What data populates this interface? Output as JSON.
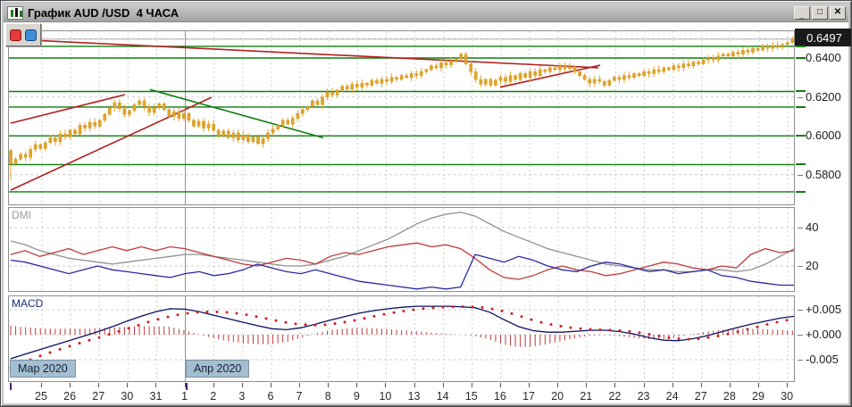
{
  "window": {
    "title": "График AUD /USD  4 ЧАСА",
    "controls": {
      "minimize": "_",
      "maximize": "□",
      "close": "✕"
    }
  },
  "toolbar": {
    "buttons": [
      {
        "name": "red-marker",
        "color": "#e23c3c"
      },
      {
        "name": "blue-marker",
        "color": "#3f8fd8"
      }
    ]
  },
  "chart_data": [
    {
      "id": "price",
      "type": "candlestick",
      "instrument": "AUD/USD",
      "timeframe": "4 ЧАСА",
      "ylim": [
        0.5643,
        0.6538
      ],
      "grid": true,
      "y_ticks": [
        {
          "label": "0.6400",
          "value": 0.64
        },
        {
          "label": "0.6200",
          "value": 0.62
        },
        {
          "label": "0.6000",
          "value": 0.6
        },
        {
          "label": "0.5800",
          "value": 0.58
        }
      ],
      "current_price": {
        "label": "0.6497",
        "value": 0.6497
      },
      "x_tick_labels": [
        "25",
        "26",
        "27",
        "30",
        "31",
        "1",
        "2",
        "3",
        "6",
        "7",
        "8",
        "9",
        "10",
        "13",
        "14",
        "15",
        "16",
        "17",
        "20",
        "21",
        "22",
        "23",
        "24",
        "27",
        "28",
        "29",
        "30"
      ],
      "candle_color": "#e2a52a",
      "first_open": 0.5925,
      "first_low": 0.577,
      "closes": [
        0.5855,
        0.588,
        0.5905,
        0.589,
        0.593,
        0.5955,
        0.5935,
        0.5965,
        0.599,
        0.597,
        0.601,
        0.5995,
        0.603,
        0.601,
        0.6055,
        0.604,
        0.607,
        0.605,
        0.608,
        0.611,
        0.6145,
        0.617,
        0.614,
        0.611,
        0.613,
        0.616,
        0.618,
        0.615,
        0.612,
        0.6145,
        0.6165,
        0.6135,
        0.61,
        0.6125,
        0.609,
        0.6115,
        0.608,
        0.605,
        0.6075,
        0.604,
        0.606,
        0.603,
        0.6,
        0.6025,
        0.599,
        0.6015,
        0.598,
        0.6005,
        0.597,
        0.5995,
        0.596,
        0.5985,
        0.6015,
        0.6035,
        0.6055,
        0.608,
        0.606,
        0.609,
        0.6115,
        0.6135,
        0.615,
        0.618,
        0.616,
        0.62,
        0.6225,
        0.621,
        0.6235,
        0.6255,
        0.624,
        0.6265,
        0.625,
        0.627,
        0.626,
        0.6285,
        0.627,
        0.629,
        0.628,
        0.63,
        0.629,
        0.631,
        0.63,
        0.632,
        0.631,
        0.633,
        0.634,
        0.636,
        0.635,
        0.6375,
        0.6365,
        0.6385,
        0.6395,
        0.642,
        0.637,
        0.633,
        0.629,
        0.6265,
        0.629,
        0.626,
        0.6285,
        0.63,
        0.628,
        0.631,
        0.629,
        0.632,
        0.63,
        0.633,
        0.631,
        0.634,
        0.633,
        0.635,
        0.634,
        0.636,
        0.6345,
        0.6355,
        0.633,
        0.631,
        0.629,
        0.627,
        0.629,
        0.628,
        0.626,
        0.6285,
        0.63,
        0.629,
        0.631,
        0.63,
        0.632,
        0.631,
        0.633,
        0.632,
        0.634,
        0.633,
        0.635,
        0.634,
        0.636,
        0.635,
        0.637,
        0.636,
        0.638,
        0.637,
        0.639,
        0.64,
        0.639,
        0.641,
        0.642,
        0.641,
        0.643,
        0.642,
        0.644,
        0.643,
        0.645,
        0.644,
        0.646,
        0.645,
        0.6465,
        0.6455,
        0.647,
        0.648,
        0.6497
      ],
      "horizontal_levels": {
        "color": "#0f7d0f",
        "values": [
          0.646,
          0.64,
          0.6228,
          0.6148,
          0.6,
          0.5852,
          0.5712
        ]
      },
      "trendlines": [
        {
          "name": "resistance-descending",
          "color": "#b52020",
          "x1": 5,
          "p1": 0.6496,
          "x2": 660,
          "p2": 0.635
        },
        {
          "name": "channel-lower-ascending",
          "color": "#b52020",
          "x1": 2,
          "p1": 0.5721,
          "x2": 227,
          "p2": 0.6198
        },
        {
          "name": "channel-upper-ascending",
          "color": "#b52020",
          "x1": 2,
          "p1": 0.6065,
          "x2": 130,
          "p2": 0.6212
        },
        {
          "name": "support-ascending-april",
          "color": "#b52020",
          "x1": 550,
          "p1": 0.625,
          "x2": 662,
          "p2": 0.6363
        },
        {
          "name": "resistance-descending-green",
          "color": "#0f7d0f",
          "x1": 158,
          "p1": 0.6238,
          "x2": 352,
          "p2": 0.599
        }
      ]
    },
    {
      "id": "dmi",
      "label": "DMI",
      "type": "line",
      "ylim": [
        6.5,
        50.2
      ],
      "y_ticks": [
        {
          "label": "40",
          "value": 40
        },
        {
          "label": "20",
          "value": 20
        }
      ],
      "series": [
        {
          "name": "ADX",
          "color": "#8f8f8f",
          "values": [
            33,
            31,
            28,
            26,
            24,
            23,
            22,
            21,
            22,
            23,
            24,
            25,
            26,
            26,
            25,
            24,
            23,
            22,
            21,
            20,
            20,
            21,
            23,
            25,
            28,
            31,
            34,
            38,
            42,
            45,
            47,
            48,
            46,
            42,
            38,
            35,
            32,
            29,
            27,
            25,
            23,
            21,
            20,
            19,
            18,
            18,
            17,
            17,
            18,
            18,
            17,
            18,
            21,
            25,
            29
          ]
        },
        {
          "name": "+DI",
          "color": "#c03a3a",
          "values": [
            26,
            28,
            25,
            27,
            29,
            26,
            28,
            30,
            28,
            30,
            28,
            30,
            29,
            27,
            25,
            23,
            21,
            20,
            22,
            24,
            23,
            21,
            25,
            27,
            26,
            28,
            30,
            31,
            32,
            30,
            31,
            29,
            24,
            18,
            14,
            13,
            15,
            18,
            20,
            18,
            17,
            15,
            16,
            18,
            20,
            22,
            21,
            19,
            18,
            20,
            19,
            26,
            29,
            27,
            28
          ]
        },
        {
          "name": "-DI",
          "color": "#2929a3",
          "values": [
            23,
            22,
            20,
            18,
            16,
            18,
            20,
            18,
            17,
            16,
            15,
            14,
            16,
            17,
            15,
            16,
            18,
            21,
            19,
            17,
            16,
            18,
            16,
            14,
            12,
            11,
            10,
            9,
            8,
            9,
            8,
            9,
            26,
            24,
            22,
            25,
            23,
            20,
            18,
            17,
            20,
            22,
            21,
            19,
            17,
            18,
            16,
            17,
            18,
            15,
            14,
            12,
            11,
            10,
            10
          ]
        }
      ]
    },
    {
      "id": "macd",
      "label": "MACD",
      "type": "macd",
      "ylim": [
        -0.0095,
        0.0077
      ],
      "values_scale": 0.001,
      "y_ticks": [
        {
          "label": "+0.005",
          "value": 0.005
        },
        {
          "label": "+0.000",
          "value": 0.0
        },
        {
          "label": "-0.005",
          "value": -0.005
        }
      ],
      "macd_line": {
        "name": "MACD",
        "color": "#0a1060",
        "values": [
          -4.8,
          -3.9,
          -3.0,
          -2.1,
          -1.2,
          -0.3,
          0.6,
          1.6,
          2.7,
          3.7,
          4.6,
          5.2,
          5.1,
          4.6,
          3.9,
          3.2,
          2.5,
          1.8,
          1.2,
          1.0,
          1.4,
          2.1,
          2.9,
          3.6,
          4.3,
          4.8,
          5.2,
          5.5,
          5.7,
          5.7,
          5.7,
          5.6,
          5.4,
          4.5,
          3.0,
          1.6,
          0.8,
          0.5,
          0.5,
          0.7,
          0.9,
          0.9,
          0.6,
          0.1,
          -0.6,
          -1.1,
          -1.2,
          -0.8,
          -0.2,
          0.6,
          1.4,
          2.1,
          2.7,
          3.3,
          3.7
        ]
      },
      "signal_line": {
        "name": "Signal",
        "color": "#cc2020",
        "values": [
          -6.6,
          -5.4,
          -4.3,
          -3.3,
          -2.4,
          -1.5,
          -0.7,
          0.2,
          1.1,
          2.0,
          2.9,
          3.6,
          4.2,
          4.5,
          4.6,
          4.5,
          4.2,
          3.7,
          3.1,
          2.5,
          2.1,
          1.9,
          2.0,
          2.4,
          2.9,
          3.5,
          4.1,
          4.6,
          5.0,
          5.3,
          5.5,
          5.6,
          5.6,
          5.4,
          4.9,
          4.1,
          3.2,
          2.4,
          1.8,
          1.4,
          1.1,
          1.0,
          0.9,
          0.7,
          0.3,
          -0.2,
          -0.7,
          -0.9,
          -0.8,
          -0.4,
          0.2,
          0.9,
          1.6,
          2.3,
          2.9
        ]
      },
      "histogram_color": "#c03a3a",
      "months": [
        {
          "label": "Мар 2020",
          "anchor_x": 2
        },
        {
          "label": "Апр 2020",
          "anchor_x": 199
        }
      ]
    }
  ],
  "colors": {
    "grid": "#cfcfcf",
    "month_separator": "#8a8a8a",
    "level_green": "#0f7d0f",
    "trend_red": "#b52020",
    "current_price_line": "#b5b5b5"
  }
}
